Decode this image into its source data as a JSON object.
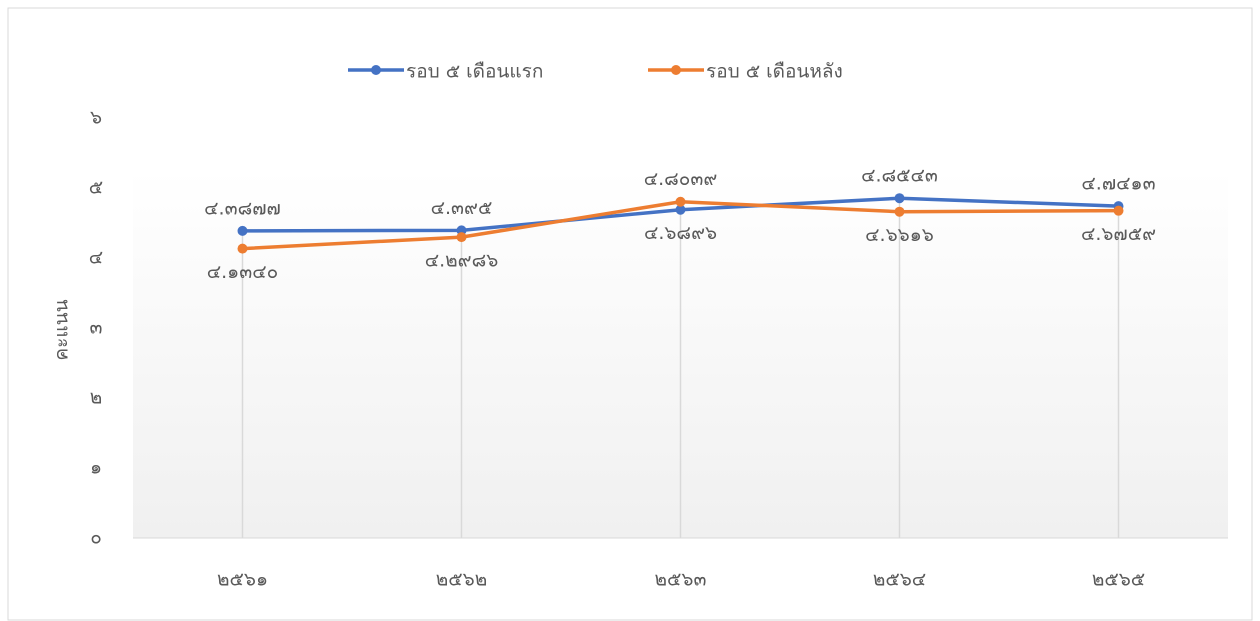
{
  "chart_data": {
    "type": "line",
    "y_label": "คะแนน",
    "categories": [
      "๒๕๖๑",
      "๒๕๖๒",
      "๒๕๖๓",
      "๒๕๖๔",
      "๒๕๖๕"
    ],
    "series": [
      {
        "name": "รอบ ๕ เดือนแรก",
        "color": "#4472c4",
        "values": [
          4.3877,
          4.395,
          4.6896,
          4.8543,
          4.7413
        ],
        "value_labels": [
          "๔.๓๘๗๗",
          "๔.๓๙๕",
          "๔.๖๘๙๖",
          "๔.๘๕๔๓",
          "๔.๗๔๑๓"
        ]
      },
      {
        "name": "รอบ ๕ เดือนหลัง",
        "color": "#ed7d31",
        "values": [
          4.134,
          4.2986,
          4.8039,
          4.6616,
          4.6759
        ],
        "value_labels": [
          "๔.๑๓๔๐",
          "๔.๒๙๘๖",
          "๔.๘๐๓๙",
          "๔.๖๖๑๖",
          "๔.๖๗๕๙"
        ]
      }
    ],
    "ylim": [
      0,
      6
    ],
    "yticks": [
      {
        "value": 0,
        "label": "๐"
      },
      {
        "value": 1,
        "label": "๑"
      },
      {
        "value": 2,
        "label": "๒"
      },
      {
        "value": 3,
        "label": "๓"
      },
      {
        "value": 4,
        "label": "๔"
      },
      {
        "value": 5,
        "label": "๕"
      },
      {
        "value": 6,
        "label": "๖"
      }
    ],
    "legend": "top"
  }
}
